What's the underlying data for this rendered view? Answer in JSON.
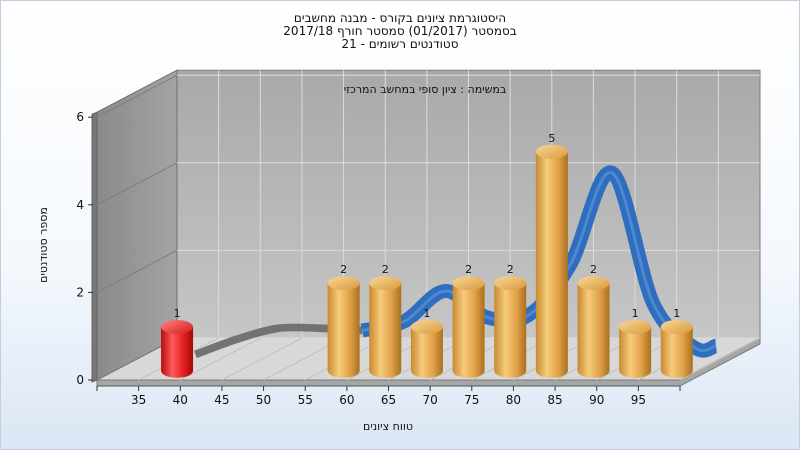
{
  "chart_data": {
    "type": "bar",
    "title": [
      "היסטוגרמת ציונים בקורס - מבנה מחשבים",
      "בסמסטר  (01/2017)  סמסטר חורף  2017/18",
      "סטודנטים רשומים - 21"
    ],
    "annotation": "במשימה : ציון סופי במחשב המרכזי",
    "xlabel": "טווח ציונים",
    "ylabel": "מספר סטודנטים",
    "x_ticks": [
      "35",
      "40",
      "45",
      "50",
      "55",
      "60",
      "65",
      "70",
      "75",
      "80",
      "85",
      "90",
      "95"
    ],
    "y_ticks": [
      "0",
      "2",
      "4",
      "6"
    ],
    "ylim": [
      0,
      6
    ],
    "xlim": [
      30,
      100
    ],
    "bars": [
      {
        "x": 37.5,
        "value": 1,
        "label": "1",
        "color": "red"
      },
      {
        "x": 57.5,
        "value": 2,
        "label": "2",
        "color": "orange"
      },
      {
        "x": 62.5,
        "value": 2,
        "label": "2",
        "color": "orange"
      },
      {
        "x": 67.5,
        "value": 1,
        "label": "1",
        "color": "orange"
      },
      {
        "x": 72.5,
        "value": 2,
        "label": "2",
        "color": "orange"
      },
      {
        "x": 77.5,
        "value": 2,
        "label": "2",
        "color": "orange"
      },
      {
        "x": 82.5,
        "value": 5,
        "label": "5",
        "color": "orange"
      },
      {
        "x": 87.5,
        "value": 2,
        "label": "2",
        "color": "orange"
      },
      {
        "x": 92.5,
        "value": 1,
        "label": "1",
        "color": "orange"
      },
      {
        "x": 97.5,
        "value": 1,
        "label": "1",
        "color": "orange"
      }
    ],
    "trend": {
      "x": [
        37.5,
        42.5,
        47.5,
        52.5,
        57.5,
        62.5,
        67.5,
        72.5,
        77.5,
        82.5,
        87.5,
        92.5,
        97.5,
        100
      ],
      "y": [
        0.15,
        0.5,
        0.75,
        0.75,
        0.7,
        0.9,
        1.6,
        1.0,
        1.05,
        2.2,
        4.3,
        1.3,
        0.3,
        0.35
      ],
      "gray_until_x": 55
    },
    "colors": {
      "orange": "#e2a448",
      "red": "#e42020",
      "trend": "#2f6ebf",
      "trend_gray": "#6e6e6e",
      "wall": "#b9b9b9",
      "wall_dark": "#8f8f8f",
      "floor": "#d8d8d8",
      "grid": "#dcdcdc"
    },
    "grid": true
  }
}
